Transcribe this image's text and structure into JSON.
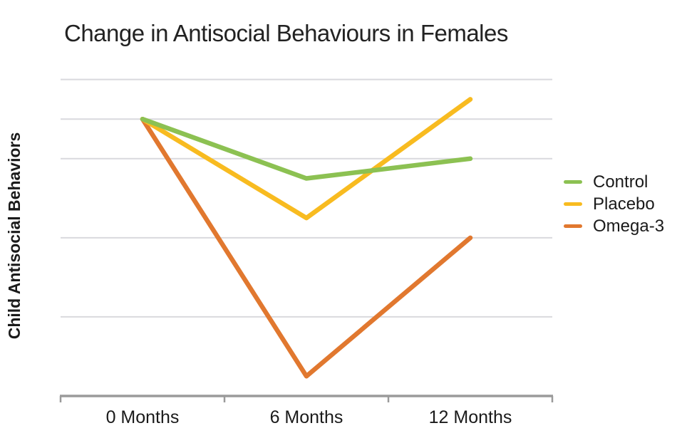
{
  "page": {
    "background": "#ffffff"
  },
  "chart_data": {
    "type": "line",
    "title": "Change in Antisocial Behaviours in Females",
    "ylabel": "Child Antisocial Behaviors",
    "xlabel": "",
    "categories": [
      "0 Months",
      "6 Months",
      "12 Months"
    ],
    "series": [
      {
        "name": "Control",
        "color": "#8CC152",
        "values": [
          7,
          5.5,
          6
        ]
      },
      {
        "name": "Placebo",
        "color": "#F8BB20",
        "values": [
          7,
          4.5,
          7.5
        ]
      },
      {
        "name": "Omega-3",
        "color": "#E1782F",
        "values": [
          7,
          0.5,
          4
        ]
      }
    ],
    "ylim": [
      0,
      8.3
    ],
    "y_gridline_values": [
      2,
      4,
      6,
      7,
      8
    ],
    "y_tick_labels_visible": false,
    "grid": "horizontal-only",
    "legend_position": "right",
    "line_width": 6.5,
    "colors": {
      "gridline": "#D9D9DD",
      "axis": "#9A9A9A",
      "text": "#212121"
    }
  }
}
